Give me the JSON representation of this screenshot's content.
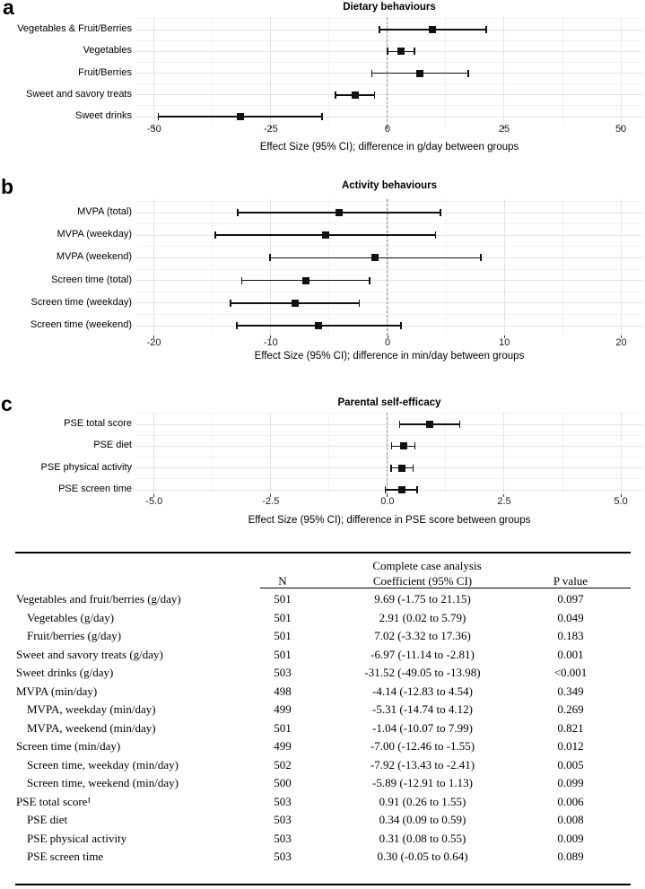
{
  "chart_data": [
    {
      "type": "scatter",
      "variant": "forest-plot",
      "panel_letter": "a",
      "title": "Dietary behaviours",
      "xlabel": "Effect Size (95% CI); difference in g/day between groups",
      "xlim": [
        -53.8,
        54.6
      ],
      "xticks": [
        -50,
        -25,
        0,
        25,
        50
      ],
      "xtick_labels": [
        "-50",
        "-25",
        "0",
        "25",
        "50"
      ],
      "zero_line": 0,
      "grid": true,
      "categories": [
        "Vegetables & Fruit/Berries",
        "Vegetables",
        "Fruit/Berries",
        "Sweet and savory treats",
        "Sweet drinks"
      ],
      "estimates": [
        9.69,
        2.91,
        7.02,
        -6.97,
        -31.52
      ],
      "ci_low": [
        -1.75,
        0.02,
        -3.32,
        -11.14,
        -49.05
      ],
      "ci_high": [
        21.15,
        5.79,
        17.36,
        -2.81,
        -13.98
      ]
    },
    {
      "type": "scatter",
      "variant": "forest-plot",
      "panel_letter": "b",
      "title": "Activity behaviours",
      "xlabel": "Effect Size (95% CI); difference in min/day between groups",
      "xlim": [
        -21.5,
        21.8
      ],
      "xticks": [
        -20,
        -10,
        0,
        10,
        20
      ],
      "xtick_labels": [
        "-20",
        "-10",
        "0",
        "10",
        "20"
      ],
      "zero_line": 0,
      "grid": true,
      "categories": [
        "MVPA (total)",
        "MVPA (weekday)",
        "MVPA (weekend)",
        "Screen time (total)",
        "Screen time (weekday)",
        "Screen time (weekend)"
      ],
      "estimates": [
        -4.14,
        -5.31,
        -1.04,
        -7.0,
        -7.92,
        -5.89
      ],
      "ci_low": [
        -12.83,
        -14.74,
        -10.07,
        -12.46,
        -13.43,
        -12.91
      ],
      "ci_high": [
        4.54,
        4.12,
        7.99,
        -1.55,
        -2.41,
        1.13
      ]
    },
    {
      "type": "scatter",
      "variant": "forest-plot",
      "panel_letter": "c",
      "title": "Parental self-efficacy",
      "xlabel": "Effect Size (95% CI); difference in PSE score between groups",
      "xlim": [
        -5.38,
        5.46
      ],
      "xticks": [
        -5,
        -2.5,
        0,
        2.5,
        5
      ],
      "xtick_labels": [
        "-5.0",
        "-2.5",
        "0.0",
        "2.5",
        "5.0"
      ],
      "zero_line": 0,
      "grid": true,
      "categories": [
        "PSE total score",
        "PSE diet",
        "PSE physical activity",
        "PSE screen time"
      ],
      "estimates": [
        0.91,
        0.34,
        0.31,
        0.3
      ],
      "ci_low": [
        0.26,
        0.09,
        0.08,
        -0.05
      ],
      "ci_high": [
        1.55,
        0.59,
        0.55,
        0.64
      ]
    }
  ],
  "table": {
    "group_header": "Complete case analysis",
    "columns": [
      "N",
      "Coefficient (95% CI)",
      "P value"
    ],
    "rows": [
      {
        "label": "Vegetables and fruit/berries (g/day)",
        "indent": false,
        "n": "501",
        "coefficient": "9.69 (-1.75 to 21.15)",
        "p_value": "0.097"
      },
      {
        "label": "Vegetables (g/day)",
        "indent": true,
        "n": "501",
        "coefficient": "2.91 (0.02 to 5.79)",
        "p_value": "0.049"
      },
      {
        "label": "Fruit/berries (g/day)",
        "indent": true,
        "n": "501",
        "coefficient": "7.02 (-3.32 to 17.36)",
        "p_value": "0.183"
      },
      {
        "label": "Sweet and savory treats (g/day)",
        "indent": false,
        "n": "501",
        "coefficient": "-6.97 (-11.14 to -2.81)",
        "p_value": "0.001"
      },
      {
        "label": "Sweet drinks (g/day)",
        "indent": false,
        "n": "503",
        "coefficient": "-31.52 (-49.05 to -13.98)",
        "p_value": "<0.001"
      },
      {
        "label": "MVPA (min/day)",
        "indent": false,
        "n": "498",
        "coefficient": "-4.14 (-12.83 to 4.54)",
        "p_value": "0.349"
      },
      {
        "label": "MVPA, weekday (min/day)",
        "indent": true,
        "n": "499",
        "coefficient": "-5.31 (-14.74 to 4.12)",
        "p_value": "0.269"
      },
      {
        "label": "MVPA, weekend (min/day)",
        "indent": true,
        "n": "501",
        "coefficient": "-1.04 (-10.07 to 7.99)",
        "p_value": "0.821"
      },
      {
        "label": "Screen time (min/day)",
        "indent": false,
        "n": "499",
        "coefficient": "-7.00 (-12.46 to -1.55)",
        "p_value": "0.012"
      },
      {
        "label": "Screen time, weekday (min/day)",
        "indent": true,
        "n": "502",
        "coefficient": "-7.92 (-13.43 to -2.41)",
        "p_value": "0.005"
      },
      {
        "label": "Screen time, weekend (min/day)",
        "indent": true,
        "n": "500",
        "coefficient": "-5.89 (-12.91 to 1.13)",
        "p_value": "0.099"
      },
      {
        "label": "PSE total score¹",
        "indent": false,
        "n": "503",
        "coefficient": "0.91 (0.26 to 1.55)",
        "p_value": "0.006"
      },
      {
        "label": "PSE diet",
        "indent": true,
        "n": "503",
        "coefficient": "0.34 (0.09 to 0.59)",
        "p_value": "0.008"
      },
      {
        "label": "PSE physical activity",
        "indent": true,
        "n": "503",
        "coefficient": "0.31 (0.08 to 0.55)",
        "p_value": "0.009"
      },
      {
        "label": "PSE screen time",
        "indent": true,
        "n": "503",
        "coefficient": "0.30 (-0.05 to 0.64)",
        "p_value": "0.089"
      }
    ]
  },
  "colors": {
    "marker": "#111111",
    "error_bar": "#111111",
    "grid_major": "#e3e3e3",
    "grid_minor": "#f2f2f2",
    "zero_line": "#8f8f8f",
    "text": "#000000",
    "rule": "#000000",
    "background": "#ffffff"
  }
}
